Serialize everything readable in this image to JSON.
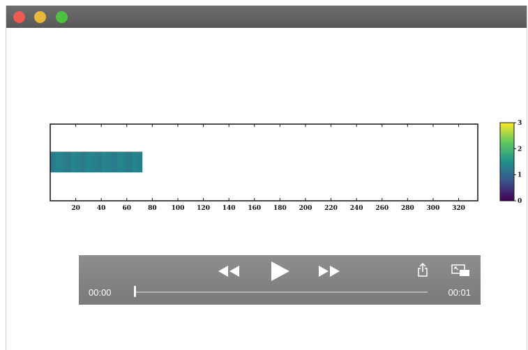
{
  "window": {
    "controls": [
      "close-button",
      "minimize-button",
      "maximize-button"
    ]
  },
  "chart_data": {
    "type": "heatmap",
    "x_ticks": [
      20,
      40,
      60,
      80,
      100,
      120,
      140,
      160,
      180,
      200,
      220,
      240,
      260,
      280,
      300,
      320
    ],
    "x_tick_labels": [
      "20",
      "40",
      "60",
      "80",
      "100",
      "120",
      "140",
      "160",
      "180",
      "200",
      "220",
      "240",
      "260",
      "280",
      "300",
      "320"
    ],
    "xlim": [
      0,
      335
    ],
    "filled_x_range": [
      0,
      72
    ],
    "filled_value": 1.3,
    "colorbar": {
      "colormap": "viridis",
      "range": [
        0,
        3
      ],
      "ticks": [
        0,
        1,
        2,
        3
      ],
      "tick_labels": [
        "0",
        "1",
        "2",
        "3"
      ]
    }
  },
  "player": {
    "time_current": "00:00",
    "time_total": "00:01",
    "progress": 0.0,
    "icons": [
      "rewind-icon",
      "play-icon",
      "fast-forward-icon",
      "share-icon",
      "picture-in-picture-icon"
    ]
  }
}
